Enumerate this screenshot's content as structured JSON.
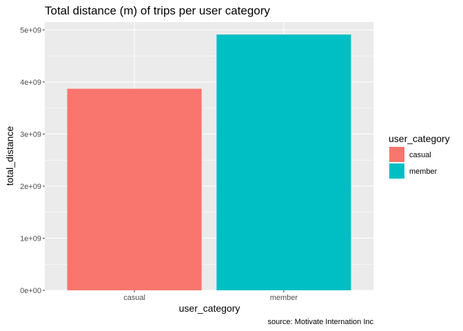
{
  "chart_data": {
    "type": "bar",
    "title": "Total distance (m) of trips per user category",
    "xlabel": "user_category",
    "ylabel": "total_distance",
    "categories": [
      "casual",
      "member"
    ],
    "values": [
      3870000000,
      4910000000
    ],
    "colors": [
      "#F8766D",
      "#00BFC4"
    ],
    "ylim": [
      0,
      5150000000
    ],
    "yticks": [
      0,
      1000000000,
      2000000000,
      3000000000,
      4000000000,
      5000000000
    ],
    "ytick_labels": [
      "0e+00",
      "1e+09",
      "2e+09",
      "3e+09",
      "4e+09",
      "5e+09"
    ],
    "grid": true,
    "panel_background": "#EBEBEB",
    "legend": {
      "title": "user_category",
      "placement": "right",
      "entries": [
        "casual",
        "member"
      ]
    },
    "caption": "source: Motivate Internation Inc"
  }
}
